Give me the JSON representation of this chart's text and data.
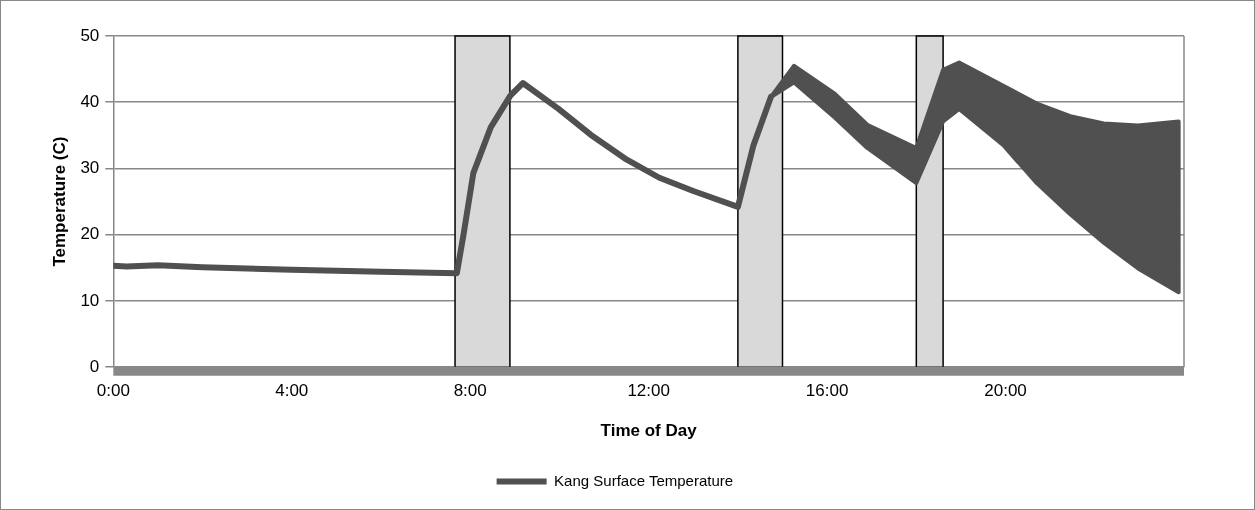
{
  "chart_data": {
    "type": "line",
    "xlabel": "Time of Day",
    "ylabel": "Temperature (C)",
    "x": [
      0,
      0.3,
      1,
      2,
      4,
      6,
      7.7,
      7.85,
      8.07,
      8.46,
      8.9,
      9.18,
      9.98,
      10.7,
      11.47,
      12.24,
      13.0,
      14.0,
      14.35,
      14.74,
      15.26,
      16.17,
      16.9,
      18.0,
      18.6,
      18.96,
      19.95,
      20.7,
      21.45,
      22.2,
      22.97,
      23.88
    ],
    "series": [
      {
        "name": "Kang Surface Temperature",
        "color": "#505050",
        "values": [
          15.3,
          15.2,
          15.4,
          15.1,
          14.7,
          14.4,
          14.2,
          20,
          29.3,
          36.2,
          41,
          42.9,
          39,
          35.1,
          31.5,
          28.6,
          26.6,
          24.2,
          33.5,
          40.8,
          null,
          null,
          null,
          null,
          null,
          null,
          null,
          null,
          null,
          null,
          null,
          null
        ],
        "lower": [
          null,
          null,
          null,
          null,
          null,
          null,
          null,
          null,
          null,
          null,
          null,
          null,
          null,
          null,
          null,
          null,
          null,
          null,
          null,
          40.8,
          43,
          37.7,
          33.1,
          27.8,
          37.1,
          39,
          33.5,
          27.8,
          23.1,
          18.8,
          14.9,
          11.3
        ],
        "upper": [
          null,
          null,
          null,
          null,
          null,
          null,
          null,
          null,
          null,
          null,
          null,
          null,
          null,
          null,
          null,
          null,
          null,
          null,
          null,
          40.8,
          45.5,
          41.3,
          36.6,
          33.1,
          44.9,
          46,
          42.5,
          39.8,
          37.9,
          36.8,
          36.5,
          37.1
        ]
      }
    ],
    "xlim": [
      0,
      24
    ],
    "xticks": [
      {
        "value": 0,
        "label": "0:00"
      },
      {
        "value": 4,
        "label": "4:00"
      },
      {
        "value": 8,
        "label": "8:00"
      },
      {
        "value": 12,
        "label": "12:00"
      },
      {
        "value": 16,
        "label": "16:00"
      },
      {
        "value": 20,
        "label": "20:00"
      }
    ],
    "ylim": [
      0,
      50
    ],
    "yticks": [
      0,
      10,
      20,
      30,
      40,
      50
    ],
    "bands": [
      {
        "axis": "x",
        "from": 7.66,
        "to": 8.89,
        "color": "#d9d9d9"
      },
      {
        "axis": "x",
        "from": 14,
        "to": 15,
        "color": "#d9d9d9"
      },
      {
        "axis": "x",
        "from": 18,
        "to": 18.6,
        "color": "#d9d9d9"
      }
    ],
    "grid": "y",
    "legend": "bottom",
    "marker": "none",
    "line_style": "solid"
  }
}
